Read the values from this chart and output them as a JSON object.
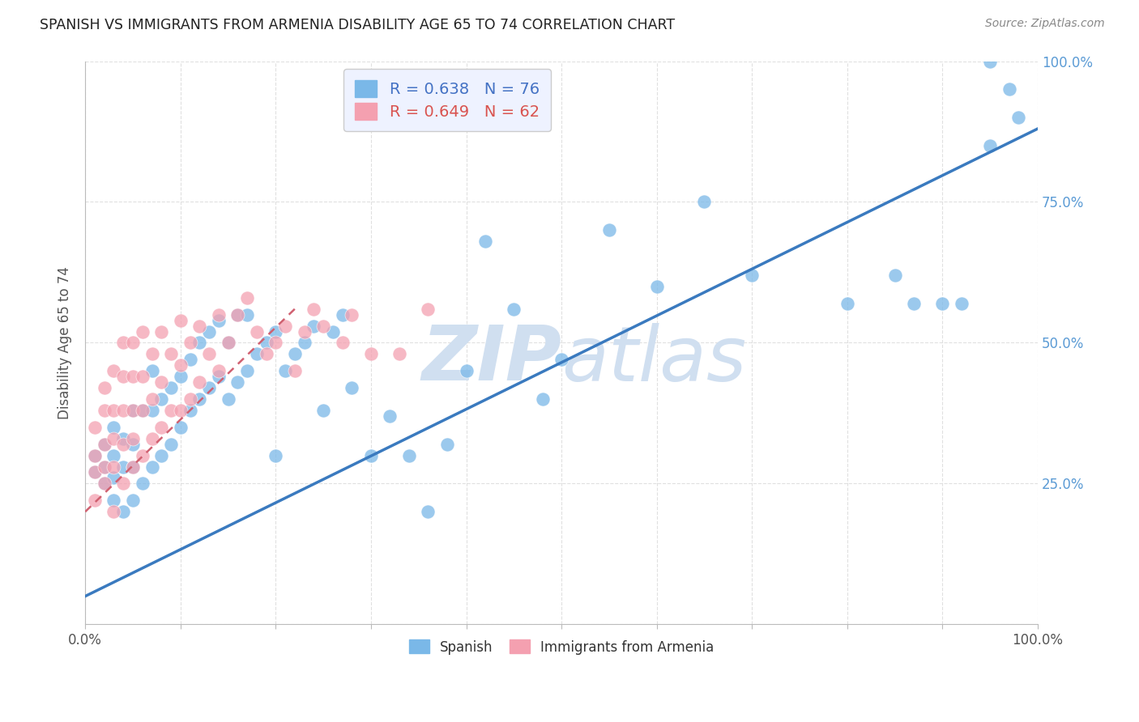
{
  "title": "SPANISH VS IMMIGRANTS FROM ARMENIA DISABILITY AGE 65 TO 74 CORRELATION CHART",
  "source": "Source: ZipAtlas.com",
  "ylabel": "Disability Age 65 to 74",
  "xlim": [
    0.0,
    1.0
  ],
  "ylim": [
    0.0,
    1.0
  ],
  "blue_R": 0.638,
  "blue_N": 76,
  "pink_R": 0.649,
  "pink_N": 62,
  "blue_color": "#7ab8e8",
  "pink_color": "#f4a0b0",
  "blue_line_color": "#3a7abf",
  "pink_line_color": "#d06070",
  "grid_color": "#e0e0e0",
  "background_color": "#ffffff",
  "watermark_color": "#d0dff0",
  "legend_facecolor": "#eef2ff",
  "legend_edgecolor": "#cccccc",
  "blue_text_color": "#4472c4",
  "pink_text_color": "#d9534f",
  "ytick_color": "#5b9bd5",
  "blue_scatter_x": [
    0.01,
    0.01,
    0.02,
    0.02,
    0.02,
    0.03,
    0.03,
    0.03,
    0.03,
    0.04,
    0.04,
    0.04,
    0.05,
    0.05,
    0.05,
    0.05,
    0.06,
    0.06,
    0.07,
    0.07,
    0.07,
    0.08,
    0.08,
    0.09,
    0.09,
    0.1,
    0.1,
    0.11,
    0.11,
    0.12,
    0.12,
    0.13,
    0.13,
    0.14,
    0.14,
    0.15,
    0.15,
    0.16,
    0.16,
    0.17,
    0.17,
    0.18,
    0.19,
    0.2,
    0.2,
    0.21,
    0.22,
    0.23,
    0.24,
    0.25,
    0.26,
    0.27,
    0.28,
    0.3,
    0.32,
    0.34,
    0.36,
    0.38,
    0.4,
    0.42,
    0.45,
    0.48,
    0.5,
    0.55,
    0.6,
    0.65,
    0.7,
    0.8,
    0.85,
    0.87,
    0.9,
    0.92,
    0.95,
    0.95,
    0.97,
    0.98
  ],
  "blue_scatter_y": [
    0.27,
    0.3,
    0.25,
    0.28,
    0.32,
    0.22,
    0.26,
    0.3,
    0.35,
    0.2,
    0.28,
    0.33,
    0.22,
    0.28,
    0.32,
    0.38,
    0.25,
    0.38,
    0.28,
    0.38,
    0.45,
    0.3,
    0.4,
    0.32,
    0.42,
    0.35,
    0.44,
    0.38,
    0.47,
    0.4,
    0.5,
    0.42,
    0.52,
    0.44,
    0.54,
    0.4,
    0.5,
    0.43,
    0.55,
    0.45,
    0.55,
    0.48,
    0.5,
    0.3,
    0.52,
    0.45,
    0.48,
    0.5,
    0.53,
    0.38,
    0.52,
    0.55,
    0.42,
    0.3,
    0.37,
    0.3,
    0.2,
    0.32,
    0.45,
    0.68,
    0.56,
    0.4,
    0.47,
    0.7,
    0.6,
    0.75,
    0.62,
    0.57,
    0.62,
    0.57,
    0.57,
    0.57,
    0.85,
    1.0,
    0.95,
    0.9
  ],
  "pink_scatter_x": [
    0.01,
    0.01,
    0.01,
    0.01,
    0.02,
    0.02,
    0.02,
    0.02,
    0.02,
    0.03,
    0.03,
    0.03,
    0.03,
    0.03,
    0.04,
    0.04,
    0.04,
    0.04,
    0.04,
    0.05,
    0.05,
    0.05,
    0.05,
    0.05,
    0.06,
    0.06,
    0.06,
    0.06,
    0.07,
    0.07,
    0.07,
    0.08,
    0.08,
    0.08,
    0.09,
    0.09,
    0.1,
    0.1,
    0.1,
    0.11,
    0.11,
    0.12,
    0.12,
    0.13,
    0.14,
    0.14,
    0.15,
    0.16,
    0.17,
    0.18,
    0.19,
    0.2,
    0.21,
    0.22,
    0.23,
    0.24,
    0.25,
    0.27,
    0.28,
    0.3,
    0.33,
    0.36
  ],
  "pink_scatter_y": [
    0.22,
    0.27,
    0.3,
    0.35,
    0.25,
    0.28,
    0.32,
    0.38,
    0.42,
    0.2,
    0.28,
    0.33,
    0.38,
    0.45,
    0.25,
    0.32,
    0.38,
    0.44,
    0.5,
    0.28,
    0.33,
    0.38,
    0.44,
    0.5,
    0.3,
    0.38,
    0.44,
    0.52,
    0.33,
    0.4,
    0.48,
    0.35,
    0.43,
    0.52,
    0.38,
    0.48,
    0.38,
    0.46,
    0.54,
    0.4,
    0.5,
    0.43,
    0.53,
    0.48,
    0.45,
    0.55,
    0.5,
    0.55,
    0.58,
    0.52,
    0.48,
    0.5,
    0.53,
    0.45,
    0.52,
    0.56,
    0.53,
    0.5,
    0.55,
    0.48,
    0.48,
    0.56
  ],
  "blue_line_x0": 0.0,
  "blue_line_y0": 0.05,
  "blue_line_x1": 1.0,
  "blue_line_y1": 0.88,
  "pink_line_x0": 0.0,
  "pink_line_y0": 0.2,
  "pink_line_x1": 0.22,
  "pink_line_y1": 0.56
}
